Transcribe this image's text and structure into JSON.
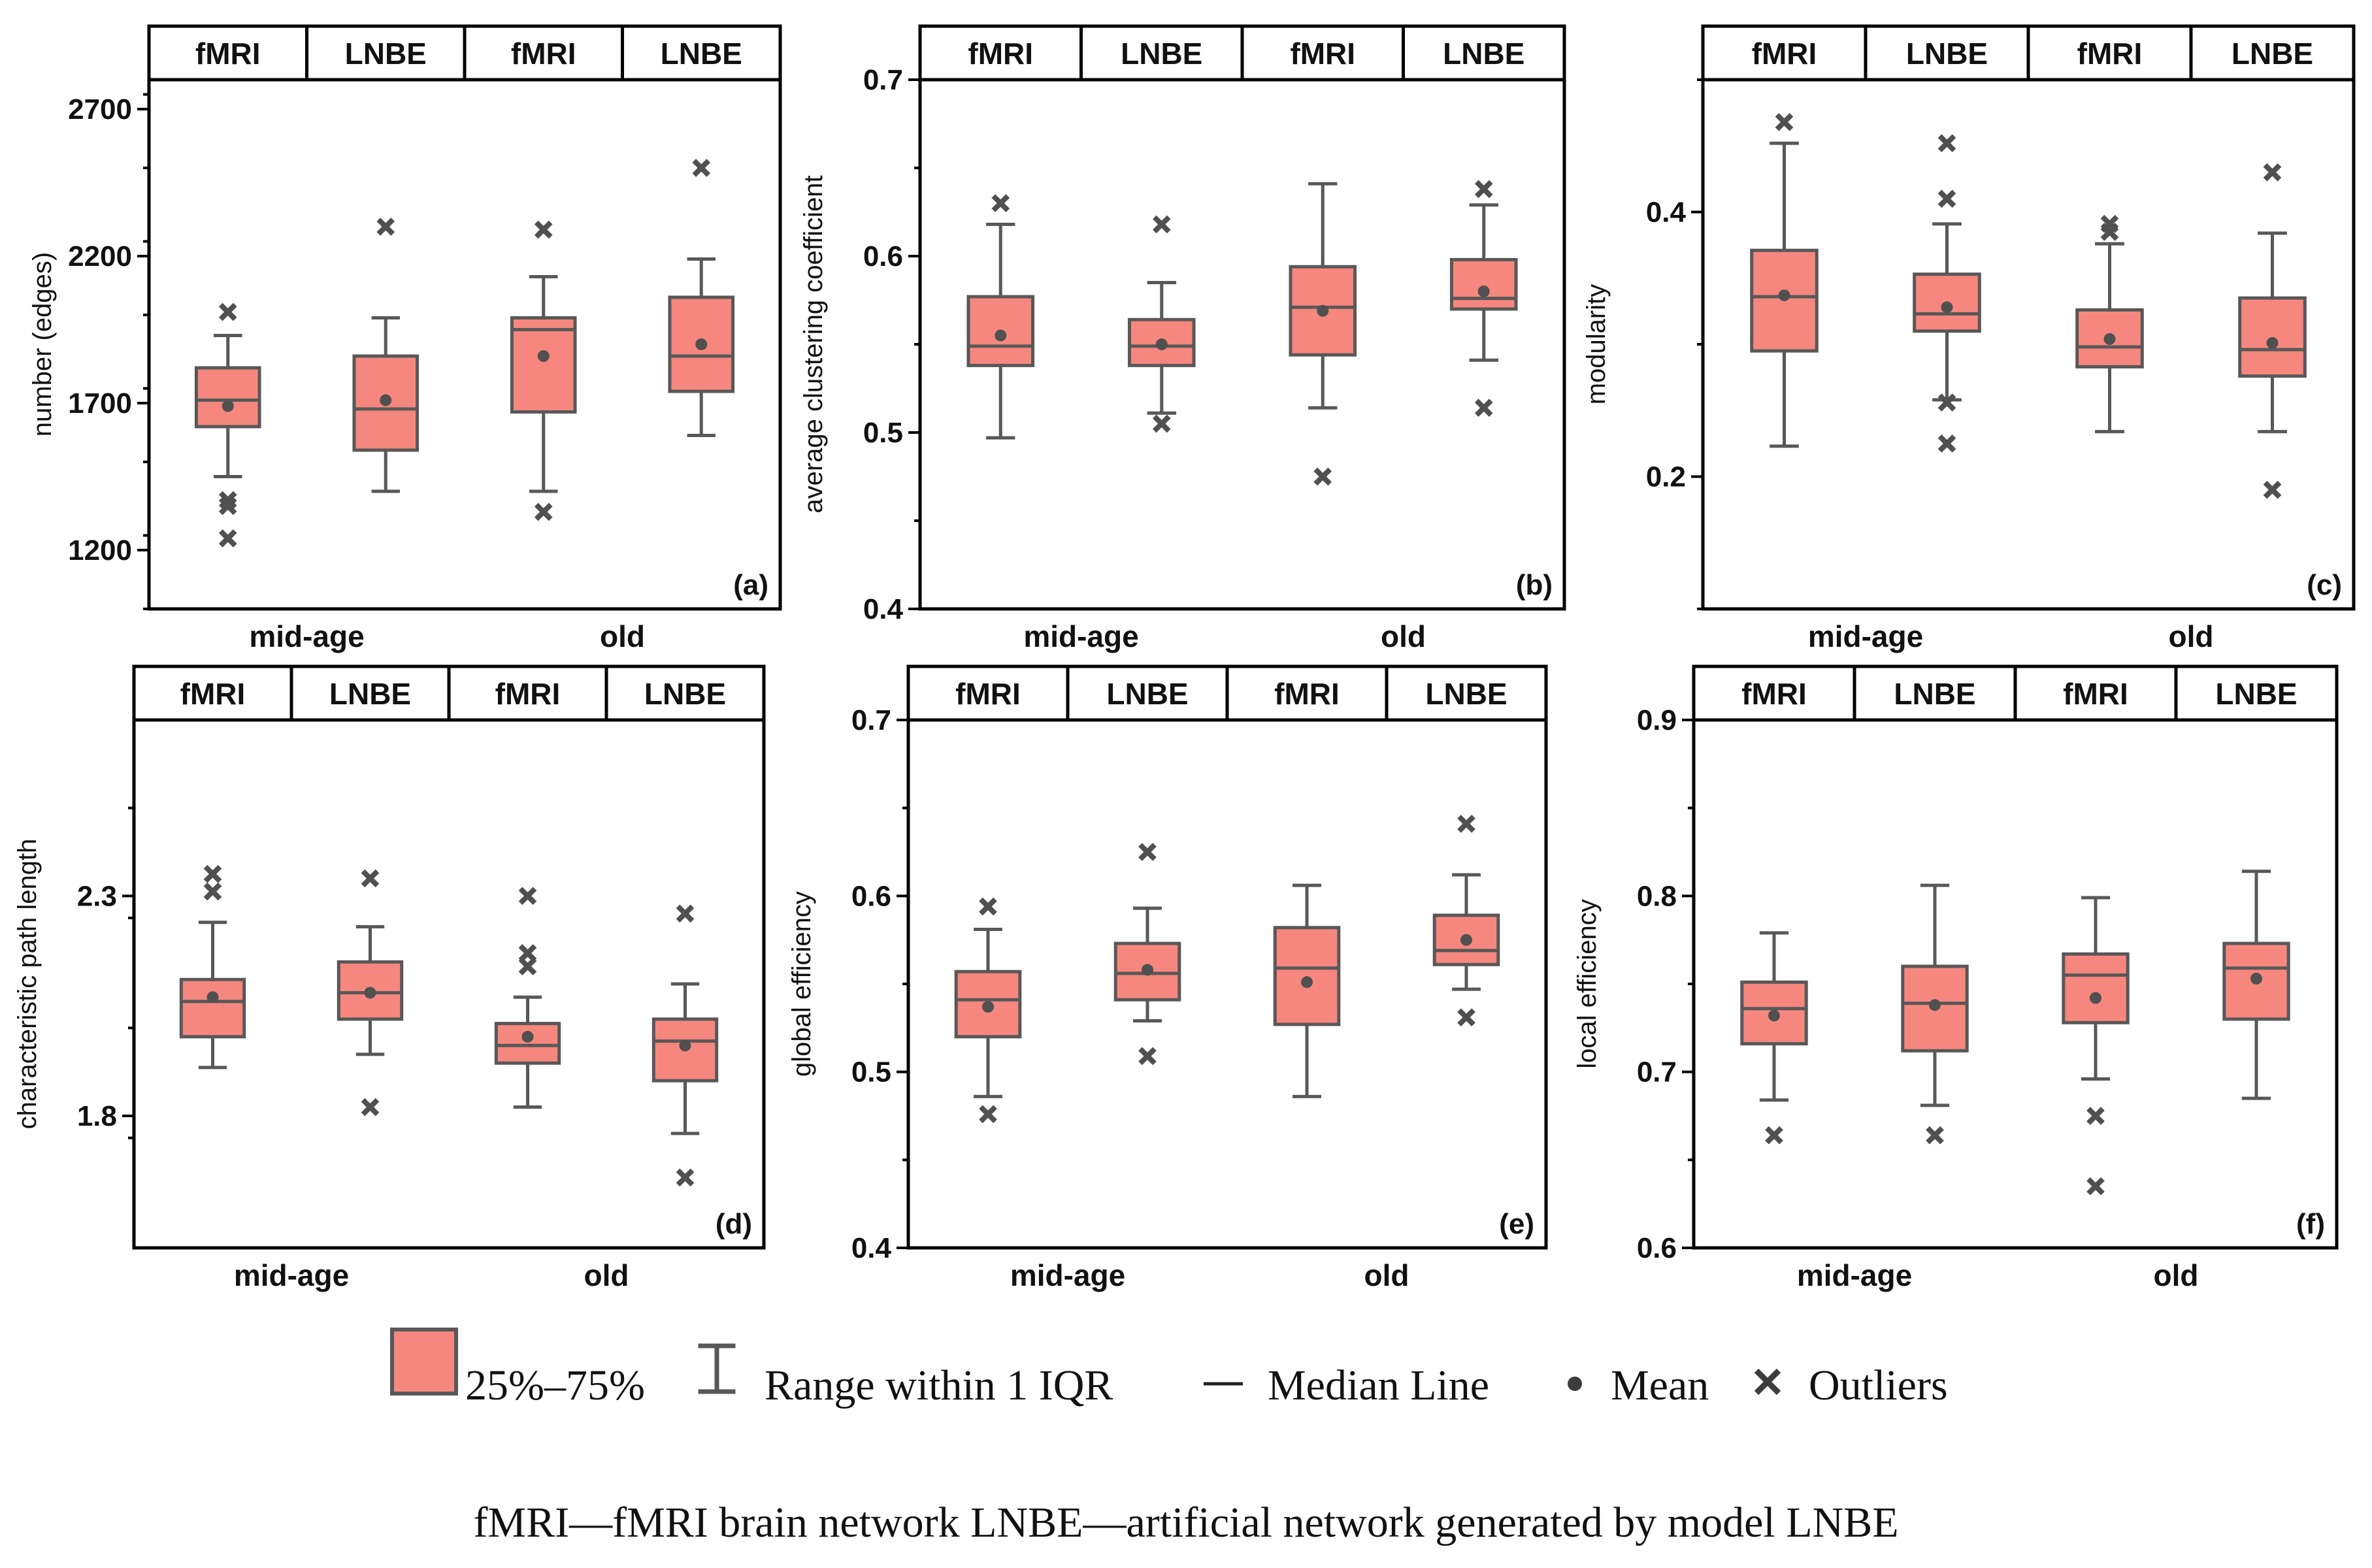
{
  "chart_data": [
    {
      "type": "box",
      "panel_label": "(a)",
      "ylabel": "number (edges)",
      "ylim": [
        1000,
        2800
      ],
      "yticks": [
        1200,
        1700,
        2200,
        2700
      ],
      "ytick_labels": [
        "1200",
        "1700",
        "2200",
        "2700"
      ],
      "groups": [
        "mid-age",
        "old"
      ],
      "categories": [
        "fMRI",
        "LNBE",
        "fMRI",
        "LNBE"
      ],
      "boxes": [
        {
          "group": "mid-age",
          "label": "fMRI",
          "q1": 1620,
          "median": 1710,
          "q3": 1820,
          "mean": 1690,
          "whisker_low": 1450,
          "whisker_high": 1930,
          "outliers": [
            1240,
            1350,
            1370,
            2010
          ]
        },
        {
          "group": "mid-age",
          "label": "LNBE",
          "q1": 1540,
          "median": 1680,
          "q3": 1860,
          "mean": 1710,
          "whisker_low": 1400,
          "whisker_high": 1990,
          "outliers": [
            2300
          ]
        },
        {
          "group": "old",
          "label": "fMRI",
          "q1": 1670,
          "median": 1950,
          "q3": 1990,
          "mean": 1860,
          "whisker_low": 1400,
          "whisker_high": 2130,
          "outliers": [
            1330,
            2290
          ]
        },
        {
          "group": "old",
          "label": "LNBE",
          "q1": 1740,
          "median": 1860,
          "q3": 2060,
          "mean": 1900,
          "whisker_low": 1590,
          "whisker_high": 2190,
          "outliers": [
            2500
          ]
        }
      ]
    },
    {
      "type": "box",
      "panel_label": "(b)",
      "ylabel": "average clustering coefficient",
      "ylim": [
        0.4,
        0.7
      ],
      "yticks": [
        0.4,
        0.5,
        0.6,
        0.7
      ],
      "ytick_labels": [
        "0.4",
        "0.5",
        "0.6",
        "0.7"
      ],
      "groups": [
        "mid-age",
        "old"
      ],
      "categories": [
        "fMRI",
        "LNBE",
        "fMRI",
        "LNBE"
      ],
      "boxes": [
        {
          "group": "mid-age",
          "label": "fMRI",
          "q1": 0.538,
          "median": 0.549,
          "q3": 0.577,
          "mean": 0.555,
          "whisker_low": 0.497,
          "whisker_high": 0.618,
          "outliers": [
            0.63
          ]
        },
        {
          "group": "mid-age",
          "label": "LNBE",
          "q1": 0.538,
          "median": 0.549,
          "q3": 0.564,
          "mean": 0.55,
          "whisker_low": 0.511,
          "whisker_high": 0.585,
          "outliers": [
            0.505,
            0.618
          ]
        },
        {
          "group": "old",
          "label": "fMRI",
          "q1": 0.544,
          "median": 0.571,
          "q3": 0.594,
          "mean": 0.569,
          "whisker_low": 0.514,
          "whisker_high": 0.641,
          "outliers": [
            0.475
          ]
        },
        {
          "group": "old",
          "label": "LNBE",
          "q1": 0.57,
          "median": 0.576,
          "q3": 0.598,
          "mean": 0.58,
          "whisker_low": 0.541,
          "whisker_high": 0.629,
          "outliers": [
            0.514,
            0.638
          ]
        }
      ]
    },
    {
      "type": "box",
      "panel_label": "(c)",
      "ylabel": "modularity",
      "ylim": [
        0.1,
        0.5
      ],
      "yticks": [
        0.2,
        0.4
      ],
      "ytick_labels": [
        "0.2",
        "0.4"
      ],
      "groups": [
        "mid-age",
        "old"
      ],
      "categories": [
        "fMRI",
        "LNBE",
        "fMRI",
        "LNBE"
      ],
      "boxes": [
        {
          "group": "mid-age",
          "label": "fMRI",
          "q1": 0.295,
          "median": 0.336,
          "q3": 0.371,
          "mean": 0.337,
          "whisker_low": 0.223,
          "whisker_high": 0.452,
          "outliers": [
            0.468
          ]
        },
        {
          "group": "mid-age",
          "label": "LNBE",
          "q1": 0.31,
          "median": 0.323,
          "q3": 0.353,
          "mean": 0.328,
          "whisker_low": 0.258,
          "whisker_high": 0.391,
          "outliers": [
            0.225,
            0.256,
            0.41,
            0.452
          ]
        },
        {
          "group": "old",
          "label": "fMRI",
          "q1": 0.283,
          "median": 0.298,
          "q3": 0.326,
          "mean": 0.304,
          "whisker_low": 0.234,
          "whisker_high": 0.376,
          "outliers": [
            0.385,
            0.391
          ]
        },
        {
          "group": "old",
          "label": "LNBE",
          "q1": 0.276,
          "median": 0.296,
          "q3": 0.335,
          "mean": 0.301,
          "whisker_low": 0.234,
          "whisker_high": 0.384,
          "outliers": [
            0.19,
            0.43
          ]
        }
      ]
    },
    {
      "type": "box",
      "panel_label": "(d)",
      "ylabel": "characteristic path length",
      "ylim": [
        1.5,
        2.7
      ],
      "yticks": [
        1.8,
        2.3
      ],
      "ytick_labels": [
        "1.8",
        "2.3"
      ],
      "groups": [
        "mid-age",
        "old"
      ],
      "categories": [
        "fMRI",
        "LNBE",
        "fMRI",
        "LNBE"
      ],
      "boxes": [
        {
          "group": "mid-age",
          "label": "fMRI",
          "q1": 1.98,
          "median": 2.06,
          "q3": 2.11,
          "mean": 2.07,
          "whisker_low": 1.91,
          "whisker_high": 2.24,
          "outliers": [
            2.31,
            2.35
          ]
        },
        {
          "group": "mid-age",
          "label": "LNBE",
          "q1": 2.02,
          "median": 2.08,
          "q3": 2.15,
          "mean": 2.08,
          "whisker_low": 1.94,
          "whisker_high": 2.23,
          "outliers": [
            1.82,
            2.34
          ]
        },
        {
          "group": "old",
          "label": "fMRI",
          "q1": 1.92,
          "median": 1.96,
          "q3": 2.01,
          "mean": 1.98,
          "whisker_low": 1.82,
          "whisker_high": 2.07,
          "outliers": [
            2.14,
            2.17,
            2.3
          ]
        },
        {
          "group": "old",
          "label": "LNBE",
          "q1": 1.88,
          "median": 1.97,
          "q3": 2.02,
          "mean": 1.96,
          "whisker_low": 1.76,
          "whisker_high": 2.1,
          "outliers": [
            1.66,
            2.26
          ]
        }
      ]
    },
    {
      "type": "box",
      "panel_label": "(e)",
      "ylabel": "global efficiency",
      "ylim": [
        0.4,
        0.7
      ],
      "yticks": [
        0.4,
        0.5,
        0.6,
        0.7
      ],
      "ytick_labels": [
        "0.4",
        "0.5",
        "0.6",
        "0.7"
      ],
      "groups": [
        "mid-age",
        "old"
      ],
      "categories": [
        "fMRI",
        "LNBE",
        "fMRI",
        "LNBE"
      ],
      "boxes": [
        {
          "group": "mid-age",
          "label": "fMRI",
          "q1": 0.52,
          "median": 0.541,
          "q3": 0.557,
          "mean": 0.537,
          "whisker_low": 0.486,
          "whisker_high": 0.581,
          "outliers": [
            0.476,
            0.594
          ]
        },
        {
          "group": "mid-age",
          "label": "LNBE",
          "q1": 0.541,
          "median": 0.556,
          "q3": 0.573,
          "mean": 0.558,
          "whisker_low": 0.529,
          "whisker_high": 0.593,
          "outliers": [
            0.509,
            0.625
          ]
        },
        {
          "group": "old",
          "label": "fMRI",
          "q1": 0.527,
          "median": 0.559,
          "q3": 0.582,
          "mean": 0.551,
          "whisker_low": 0.486,
          "whisker_high": 0.606,
          "outliers": []
        },
        {
          "group": "old",
          "label": "LNBE",
          "q1": 0.561,
          "median": 0.569,
          "q3": 0.589,
          "mean": 0.575,
          "whisker_low": 0.547,
          "whisker_high": 0.612,
          "outliers": [
            0.531,
            0.641
          ]
        }
      ]
    },
    {
      "type": "box",
      "panel_label": "(f)",
      "ylabel": "local efficiency",
      "ylim": [
        0.6,
        0.9
      ],
      "yticks": [
        0.6,
        0.7,
        0.8,
        0.9
      ],
      "ytick_labels": [
        "0.6",
        "0.7",
        "0.8",
        "0.9"
      ],
      "groups": [
        "mid-age",
        "old"
      ],
      "categories": [
        "fMRI",
        "LNBE",
        "fMRI",
        "LNBE"
      ],
      "boxes": [
        {
          "group": "mid-age",
          "label": "fMRI",
          "q1": 0.716,
          "median": 0.736,
          "q3": 0.751,
          "mean": 0.732,
          "whisker_low": 0.684,
          "whisker_high": 0.779,
          "outliers": [
            0.664
          ]
        },
        {
          "group": "mid-age",
          "label": "LNBE",
          "q1": 0.712,
          "median": 0.739,
          "q3": 0.76,
          "mean": 0.738,
          "whisker_low": 0.681,
          "whisker_high": 0.806,
          "outliers": [
            0.664
          ]
        },
        {
          "group": "old",
          "label": "fMRI",
          "q1": 0.728,
          "median": 0.755,
          "q3": 0.767,
          "mean": 0.742,
          "whisker_low": 0.696,
          "whisker_high": 0.799,
          "outliers": [
            0.635,
            0.675
          ]
        },
        {
          "group": "old",
          "label": "LNBE",
          "q1": 0.73,
          "median": 0.759,
          "q3": 0.773,
          "mean": 0.753,
          "whisker_low": 0.685,
          "whisker_high": 0.814,
          "outliers": []
        }
      ]
    }
  ],
  "legend": {
    "box_label": "25%–75%",
    "whisker_label": "Range within 1 IQR",
    "median_label": "Median Line",
    "mean_label": "Mean",
    "outlier_label": "Outliers"
  },
  "caption": "fMRI—fMRI brain network LNBE—artificial network generated by model LNBE",
  "colors": {
    "box_fill": "#f6877f",
    "box_stroke": "#585858",
    "frame": "#000000"
  }
}
